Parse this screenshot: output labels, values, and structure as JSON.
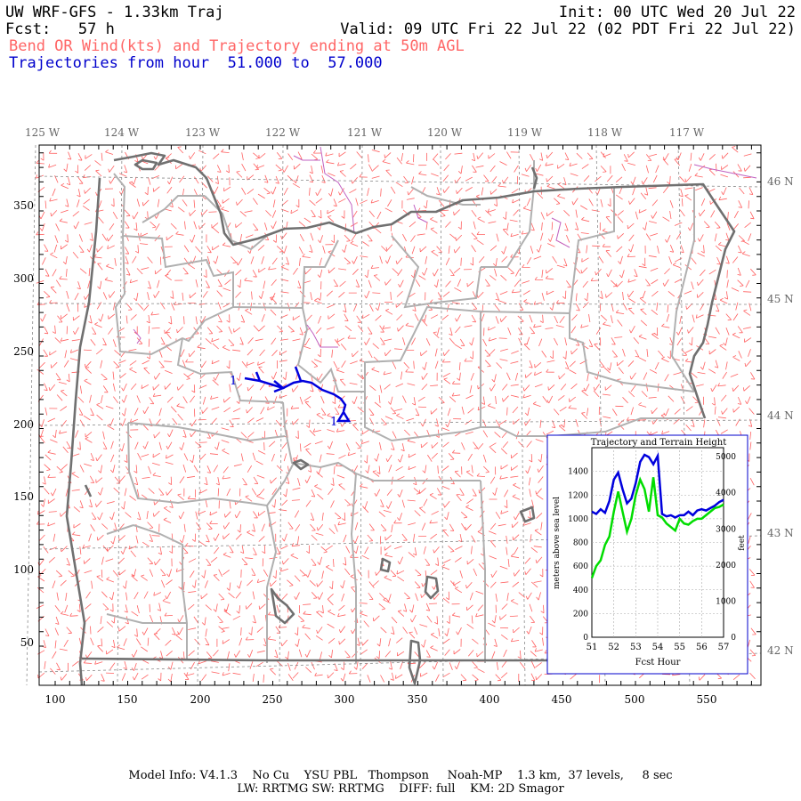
{
  "header": {
    "title": "UW WRF-GFS - 1.33km Traj",
    "forecast": "Fcst:   57 h",
    "init": "Init: 00 UTC Wed 20 Jul 22",
    "valid": "Valid: 09 UTC Fri 22 Jul 22 (02 PDT Fri 22 Jul 22)",
    "subtitle": "Bend OR Wind(kts) and Trajectory ending at 50m AGL",
    "subtitle_color": "#ff6666",
    "traj_range": "Trajectories from hour  51.000 to  57.000",
    "traj_range_color": "#0000cc"
  },
  "map": {
    "lon_labels": [
      "125 W",
      "124 W",
      "123 W",
      "122 W",
      "121 W",
      "120 W",
      "119 W",
      "118 W",
      "117 W"
    ],
    "lat_labels": [
      "46 N",
      "45 N",
      "44 N",
      "43 N",
      "42 N"
    ],
    "x_ticks": [
      "100",
      "150",
      "200",
      "250",
      "300",
      "350",
      "400",
      "450",
      "500",
      "550"
    ],
    "y_ticks": [
      "50",
      "100",
      "150",
      "200",
      "250",
      "300",
      "350"
    ],
    "trajectory_start_label": "1",
    "trajectory_end_label": "1",
    "colors": {
      "coast": "#707070",
      "counties": "#b0b0b0",
      "barbs": "#ff6060",
      "trajectory": "#0000dd",
      "water": "#c060c0"
    }
  },
  "inset": {
    "title": "Trajectory and Terrain Height",
    "xlabel": "Fcst Hour",
    "ylabel_left": "meters above sea level",
    "ylabel_right": "feet",
    "x_ticks": [
      "51",
      "52",
      "53",
      "54",
      "55",
      "56",
      "57"
    ],
    "y_ticks_m": [
      "0",
      "200",
      "400",
      "600",
      "800",
      "1000",
      "1200",
      "1400"
    ],
    "y_ticks_ft": [
      "0",
      "1000",
      "2000",
      "3000",
      "4000",
      "5000"
    ],
    "trajectory_color": "#0000dd",
    "terrain_color": "#00dd00"
  },
  "chart_data": {
    "type": "line",
    "title": "Trajectory and Terrain Height",
    "xlabel": "Fcst Hour",
    "ylabel": "meters above sea level",
    "xlim": [
      51,
      57
    ],
    "ylim": [
      0,
      1600
    ],
    "series": [
      {
        "x": [
          51,
          51.2,
          51.4,
          51.6,
          51.8,
          52,
          52.2,
          52.4,
          52.6,
          52.8,
          53,
          53.2,
          53.4,
          53.6,
          53.8,
          54,
          54.2,
          54.4,
          54.6,
          54.8,
          55,
          55.2,
          55.4,
          55.6,
          55.8,
          56,
          56.2,
          56.4,
          56.6,
          56.8,
          57
        ],
        "values": [
          1060,
          1040,
          1080,
          1050,
          1150,
          1330,
          1390,
          1250,
          1130,
          1170,
          1300,
          1480,
          1540,
          1520,
          1460,
          1530,
          1040,
          1020,
          1030,
          1010,
          1030,
          1030,
          1060,
          1030,
          1070,
          1080,
          1070,
          1090,
          1110,
          1140,
          1160
        ]
      },
      {
        "x": [
          51,
          51.2,
          51.4,
          51.6,
          51.8,
          52,
          52.2,
          52.4,
          52.6,
          52.8,
          53,
          53.2,
          53.4,
          53.6,
          53.8,
          54,
          54.2,
          54.4,
          54.6,
          54.8,
          55,
          55.2,
          55.4,
          55.6,
          55.8,
          56,
          56.2,
          56.4,
          56.6,
          56.8,
          57
        ],
        "values": [
          500,
          600,
          650,
          780,
          850,
          1060,
          1230,
          1060,
          890,
          1000,
          1200,
          1330,
          1250,
          1060,
          1350,
          1030,
          1010,
          960,
          930,
          900,
          1000,
          960,
          950,
          980,
          1000,
          1000,
          1030,
          1060,
          1090,
          1100,
          1120
        ]
      }
    ]
  }
}
